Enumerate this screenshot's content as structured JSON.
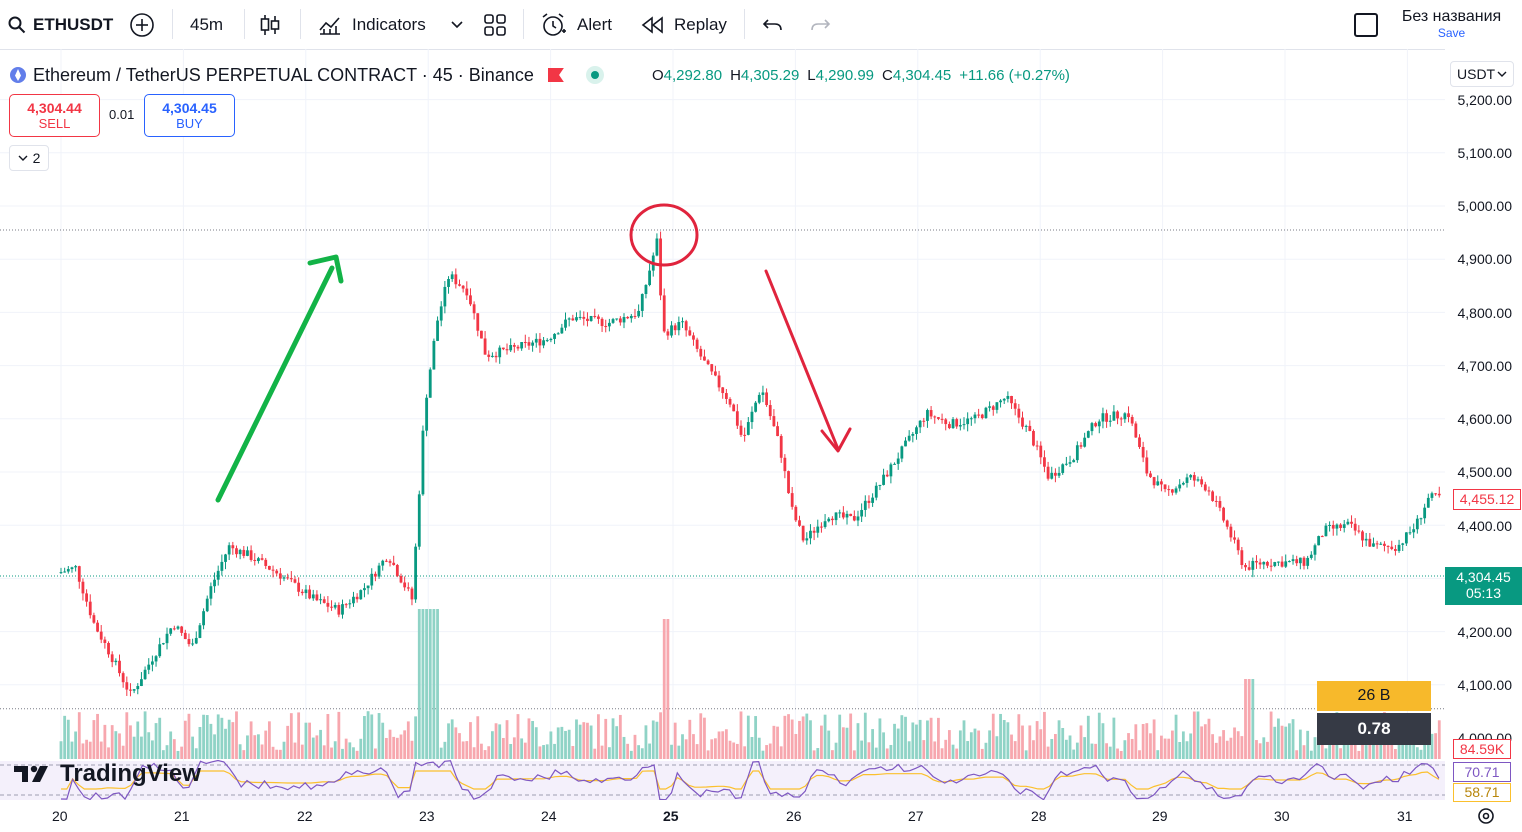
{
  "toolbar": {
    "symbol": "ETHUSDT",
    "interval": "45m",
    "indicators_label": "Indicators",
    "alert_label": "Alert",
    "replay_label": "Replay",
    "layout_name": "Без названия",
    "save_label": "Save"
  },
  "legend": {
    "title": "Ethereum / TetherUS PERPETUAL CONTRACT · 45 · Binance",
    "o_key": "O",
    "o": "4,292.80",
    "h_key": "H",
    "h": "4,305.29",
    "l_key": "L",
    "l": "4,290.99",
    "c_key": "C",
    "c": "4,304.45",
    "change": "+11.66 (+0.27%)"
  },
  "trading": {
    "sell_price": "4,304.44",
    "sell_label": "SELL",
    "spread": "0.01",
    "buy_price": "4,304.45",
    "buy_label": "BUY",
    "collapse_count": "2"
  },
  "price_axis": {
    "currency": "USDT",
    "labels": [
      "5,200.00",
      "5,100.00",
      "5,000.00",
      "4,900.00",
      "4,800.00",
      "4,700.00",
      "4,600.00",
      "4,500.00",
      "4,400.00",
      "4,200.00",
      "4,100.00",
      "4,000.00"
    ],
    "marker_4455": "4,455.12",
    "current_price": "4,304.45",
    "countdown": "05:13",
    "volume_26b": "26 B",
    "ratio": "0.78",
    "volume_value": "84.59K",
    "rsi_value": "70.71",
    "rsi_ma": "58.71"
  },
  "time_axis": {
    "labels": [
      "20",
      "21",
      "22",
      "23",
      "24",
      "25",
      "26",
      "27",
      "28",
      "29",
      "30",
      "31"
    ]
  },
  "watermark": "TradingView",
  "colors": {
    "up": "#089981",
    "down": "#f23645",
    "accent_blue": "#2962ff",
    "green_arrow": "#12b347",
    "red_annotation": "#e0243d",
    "yellow_badge": "#f7b92b",
    "dark_badge": "#363a45",
    "rsi_line": "#7e57c2",
    "rsi_ma": "#fbc02d"
  },
  "chart_data": {
    "type": "candlestick",
    "symbol": "ETHUSDT",
    "timeframe": "45m",
    "x_ticks": [
      "20",
      "21",
      "22",
      "23",
      "24",
      "25",
      "26",
      "27",
      "28",
      "29",
      "30",
      "31"
    ],
    "ylim": [
      4060,
      5240
    ],
    "close_path": [
      {
        "x": 0.0,
        "y": 4310
      },
      {
        "x": 0.15,
        "y": 4320
      },
      {
        "x": 0.3,
        "y": 4215
      },
      {
        "x": 0.45,
        "y": 4150
      },
      {
        "x": 0.6,
        "y": 4080
      },
      {
        "x": 0.8,
        "y": 4160
      },
      {
        "x": 0.95,
        "y": 4215
      },
      {
        "x": 1.1,
        "y": 4170
      },
      {
        "x": 1.25,
        "y": 4280
      },
      {
        "x": 1.4,
        "y": 4360
      },
      {
        "x": 1.55,
        "y": 4345
      },
      {
        "x": 1.8,
        "y": 4310
      },
      {
        "x": 2.1,
        "y": 4260
      },
      {
        "x": 2.3,
        "y": 4240
      },
      {
        "x": 2.5,
        "y": 4280
      },
      {
        "x": 2.7,
        "y": 4345
      },
      {
        "x": 2.9,
        "y": 4260
      },
      {
        "x": 3.0,
        "y": 4620
      },
      {
        "x": 3.1,
        "y": 4780
      },
      {
        "x": 3.2,
        "y": 4870
      },
      {
        "x": 3.35,
        "y": 4840
      },
      {
        "x": 3.5,
        "y": 4720
      },
      {
        "x": 3.7,
        "y": 4730
      },
      {
        "x": 4.0,
        "y": 4750
      },
      {
        "x": 4.2,
        "y": 4790
      },
      {
        "x": 4.5,
        "y": 4780
      },
      {
        "x": 4.75,
        "y": 4800
      },
      {
        "x": 4.9,
        "y": 4935
      },
      {
        "x": 4.95,
        "y": 4760
      },
      {
        "x": 5.1,
        "y": 4780
      },
      {
        "x": 5.3,
        "y": 4700
      },
      {
        "x": 5.5,
        "y": 4630
      },
      {
        "x": 5.6,
        "y": 4560
      },
      {
        "x": 5.75,
        "y": 4660
      },
      {
        "x": 5.9,
        "y": 4550
      },
      {
        "x": 6.0,
        "y": 4430
      },
      {
        "x": 6.1,
        "y": 4370
      },
      {
        "x": 6.3,
        "y": 4420
      },
      {
        "x": 6.5,
        "y": 4410
      },
      {
        "x": 6.7,
        "y": 4470
      },
      {
        "x": 6.9,
        "y": 4540
      },
      {
        "x": 7.1,
        "y": 4610
      },
      {
        "x": 7.3,
        "y": 4590
      },
      {
        "x": 7.5,
        "y": 4600
      },
      {
        "x": 7.75,
        "y": 4640
      },
      {
        "x": 7.95,
        "y": 4570
      },
      {
        "x": 8.1,
        "y": 4490
      },
      {
        "x": 8.3,
        "y": 4530
      },
      {
        "x": 8.5,
        "y": 4600
      },
      {
        "x": 8.75,
        "y": 4610
      },
      {
        "x": 8.9,
        "y": 4500
      },
      {
        "x": 9.05,
        "y": 4460
      },
      {
        "x": 9.25,
        "y": 4490
      },
      {
        "x": 9.4,
        "y": 4470
      },
      {
        "x": 9.55,
        "y": 4400
      },
      {
        "x": 9.7,
        "y": 4320
      },
      {
        "x": 9.85,
        "y": 4330
      },
      {
        "x": 10.0,
        "y": 4330
      },
      {
        "x": 10.2,
        "y": 4330
      },
      {
        "x": 10.35,
        "y": 4390
      },
      {
        "x": 10.55,
        "y": 4400
      },
      {
        "x": 10.75,
        "y": 4360
      },
      {
        "x": 10.95,
        "y": 4360
      },
      {
        "x": 11.1,
        "y": 4400
      },
      {
        "x": 11.2,
        "y": 4450
      },
      {
        "x": 11.35,
        "y": 4455
      }
    ],
    "reference_lines": [
      4955,
      4304.45,
      4055
    ],
    "annotations": [
      "green up arrow",
      "red circle at peak",
      "red down arrow"
    ]
  }
}
